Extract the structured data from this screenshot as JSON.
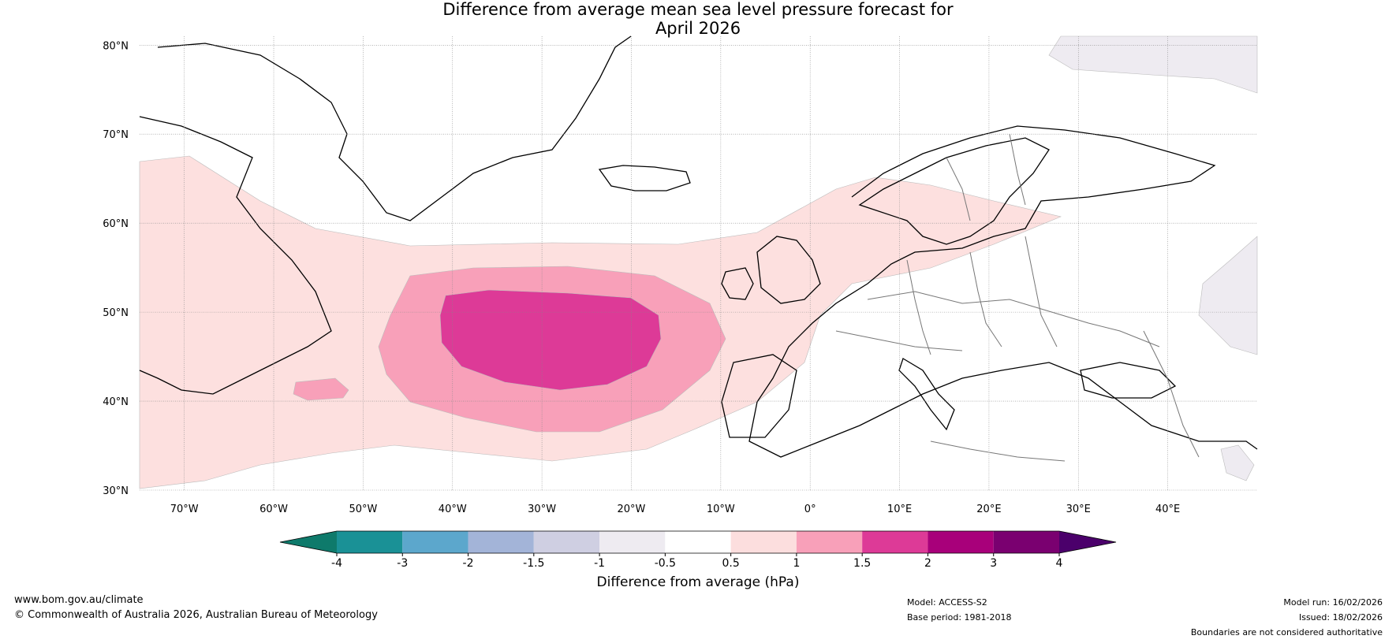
{
  "title": {
    "line1": "Difference from average mean sea level pressure forecast for",
    "line2": "April 2026"
  },
  "map": {
    "lat_ticks": [
      "80°N",
      "70°N",
      "60°N",
      "50°N",
      "40°N",
      "30°N"
    ],
    "lon_ticks": [
      "70°W",
      "60°W",
      "50°W",
      "40°W",
      "30°W",
      "20°W",
      "10°W",
      "0°",
      "10°E",
      "20°E",
      "30°E",
      "40°E"
    ],
    "extent": {
      "lon_min": -75,
      "lon_max": 50,
      "lat_min": 30,
      "lat_max": 81
    }
  },
  "colorbar": {
    "label": "Difference from average (hPa)",
    "ticks": [
      "-4",
      "-3",
      "-2",
      "-1.5",
      "-1",
      "-0.5",
      "0.5",
      "1",
      "1.5",
      "2",
      "3",
      "4"
    ],
    "colors": [
      "#0e7a6b",
      "#1a9196",
      "#5ca7cc",
      "#a3b4d8",
      "#cfcfe2",
      "#eeebf1",
      "#ffffff",
      "#fcdede",
      "#f8a0b9",
      "#dd3a97",
      "#a8007a",
      "#7a0070",
      "#4b006b"
    ],
    "low_fill": "#fde0df",
    "mid_fill": "#f8a0b9",
    "high_fill": "#dd3a97",
    "neg_fill": "#eeebf1"
  },
  "footer": {
    "url": "www.bom.gov.au/climate",
    "copyright": "© Commonwealth of Australia 2026, Australian Bureau of Meteorology",
    "model": "Model: ACCESS-S2",
    "base_period": "Base period: 1981-2018",
    "model_run": "Model run: 16/02/2026",
    "issued": "Issued: 18/02/2026",
    "disclaimer": "Boundaries are not considered authoritative"
  }
}
